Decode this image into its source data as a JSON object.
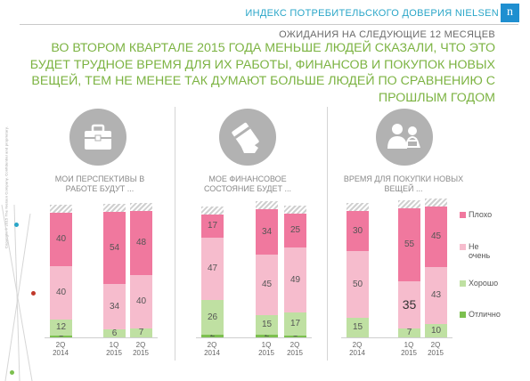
{
  "header": {
    "brand_title": "ИНДЕКС ПОТРЕБИТЕЛЬСКОГО ДОВЕРИЯ NIELSEN",
    "logo_letter": "n",
    "copyright": "Copyright © 2015 The Nielsen Company. Confidential and proprietary."
  },
  "subtitle": "ОЖИДАНИЯ НА СЛЕДУЮЩИЕ 12 МЕСЯЦЕВ",
  "headline": "ВО ВТОРОМ КВАРТАЛЕ 2015 ГОДА МЕНЬШЕ ЛЮДЕЙ СКАЗАЛИ, ЧТО ЭТО БУДЕТ ТРУДНОЕ ВРЕМЯ ДЛЯ ИХ РАБОТЫ, ФИНАНСОВ И ПОКУПОК НОВЫХ ВЕЩЕЙ, ТЕМ НЕ МЕНЕЕ ТАК ДУМАЮТ БОЛЬШЕ ЛЮДЕЙ ПО СРАВНЕНИЮ С ПРОШЛЫМ ГОДОМ",
  "colors": {
    "plokho": "#f0789e",
    "ne_ochen": "#f6bccd",
    "khorosho": "#bfe0a2",
    "otlichno": "#7cc04f",
    "headline": "#7cb342",
    "brand": "#2aa6c8"
  },
  "icons": [
    "briefcase-icon",
    "wallet-hand-icon",
    "shopping-people-icon"
  ],
  "legend": [
    {
      "key": "plokho",
      "label": "Плохо"
    },
    {
      "key": "ne_ochen",
      "label": "Не очень"
    },
    {
      "key": "khorosho",
      "label": "Хорошо"
    },
    {
      "key": "otlichno",
      "label": "Отлично"
    }
  ],
  "chart_data": [
    {
      "type": "bar",
      "title": "МОИ ПЕРСПЕКТИВЫ В РАБОТЕ БУДУТ ...",
      "categories": [
        [
          "2Q",
          "2014"
        ],
        [
          "1Q",
          "2015"
        ],
        [
          "2Q",
          "2015"
        ]
      ],
      "series": [
        {
          "name": "Плохо",
          "values": [
            40,
            54,
            48
          ]
        },
        {
          "name": "Не очень",
          "values": [
            40,
            34,
            40
          ]
        },
        {
          "name": "Хорошо",
          "values": [
            12,
            6,
            7
          ]
        },
        {
          "name": "Отлично",
          "values": [
            1,
            null,
            null
          ]
        }
      ]
    },
    {
      "type": "bar",
      "title": "МОЕ ФИНАНСОВОЕ СОСТОЯНИЕ БУДЕТ ...",
      "categories": [
        [
          "2Q",
          "2014"
        ],
        [
          "1Q",
          "2015"
        ],
        [
          "2Q",
          "2015"
        ]
      ],
      "series": [
        {
          "name": "Плохо",
          "values": [
            17,
            34,
            25
          ]
        },
        {
          "name": "Не очень",
          "values": [
            47,
            45,
            49
          ]
        },
        {
          "name": "Хорошо",
          "values": [
            26,
            15,
            17
          ]
        },
        {
          "name": "Отлично",
          "values": [
            2,
            2,
            1
          ]
        }
      ]
    },
    {
      "type": "bar",
      "title": "ВРЕМЯ ДЛЯ ПОКУПКИ НОВЫХ ВЕЩЕЙ ...",
      "categories": [
        [
          "2Q",
          "2014"
        ],
        [
          "1Q",
          "2015"
        ],
        [
          "2Q",
          "2015"
        ]
      ],
      "series": [
        {
          "name": "Плохо",
          "values": [
            30,
            55,
            45
          ]
        },
        {
          "name": "Не очень",
          "values": [
            50,
            35,
            43
          ]
        },
        {
          "name": "Хорошо",
          "values": [
            15,
            7,
            10
          ]
        },
        {
          "name": "Отлично",
          "values": [
            null,
            null,
            null
          ]
        }
      ]
    }
  ]
}
